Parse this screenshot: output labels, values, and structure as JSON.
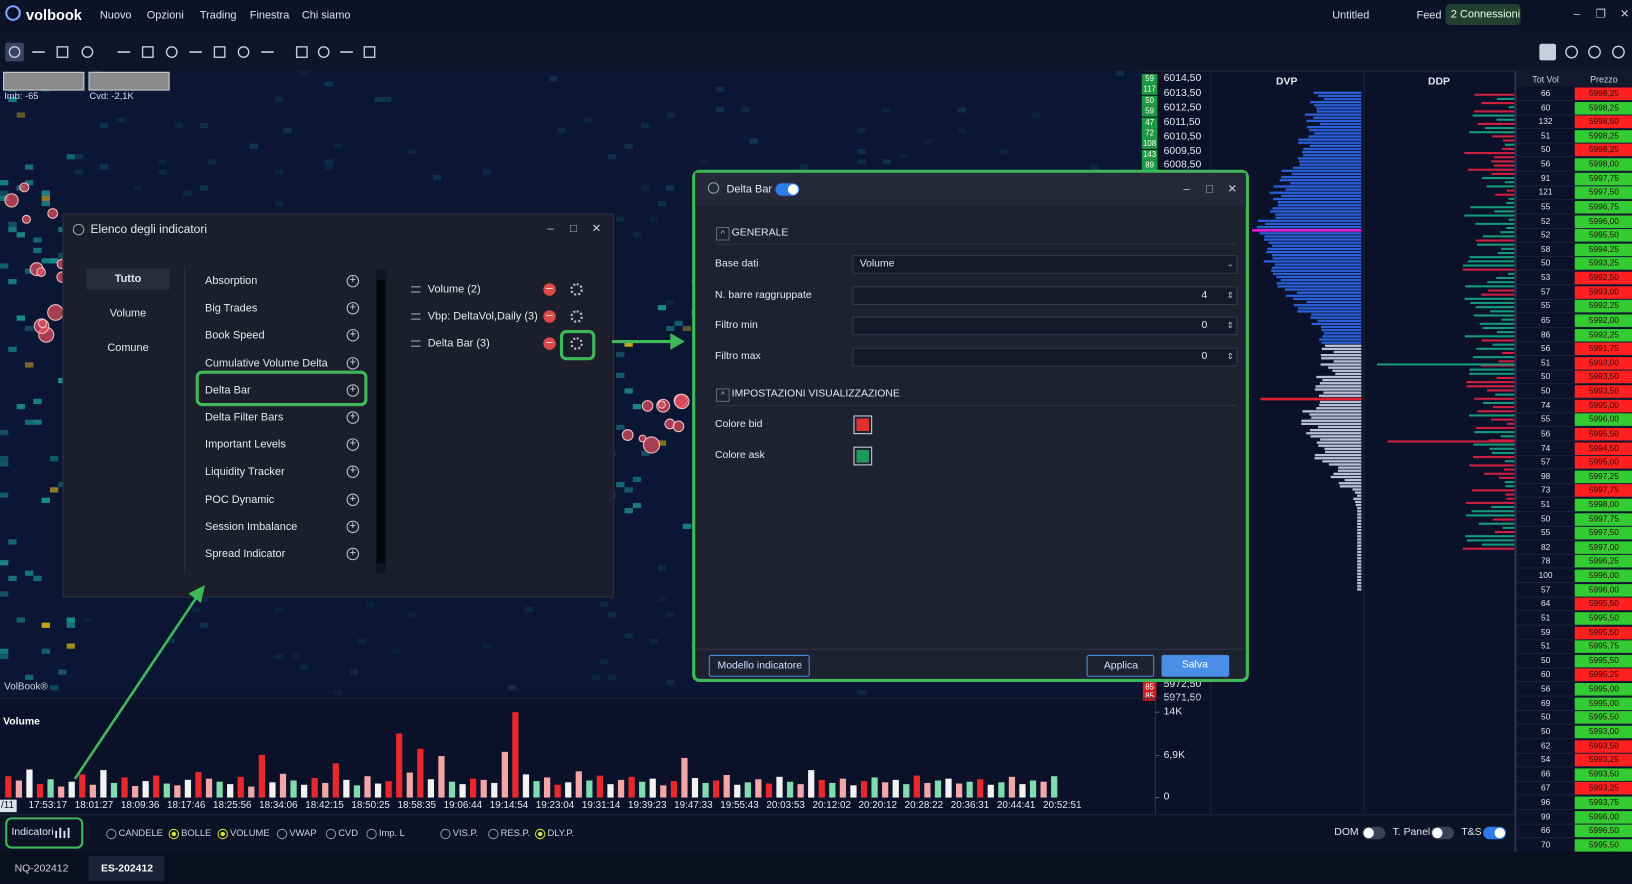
{
  "menu": {
    "logo": "volbook",
    "items": [
      "Nuovo",
      "Opzioni",
      "Trading",
      "Finestra",
      "Chi siamo"
    ],
    "workspace": "Untitled",
    "feed": "Feed",
    "connections": "2 Connessioni"
  },
  "chart": {
    "imb": "Imb: -65",
    "cvd": "Cvd: -2,1K",
    "watermark": "VolBook®",
    "price_labels": [
      "6014,50",
      "6013,50",
      "6012,50",
      "6011,50",
      "6010,50",
      "6009,50",
      "6008,50"
    ],
    "price_volumes": [
      59,
      117,
      50,
      59,
      47,
      72,
      108,
      143,
      89
    ],
    "bottom_prices": [
      "5972,50",
      "5971,50"
    ],
    "bottom_volumes": [
      85,
      85
    ]
  },
  "volume_chart": {
    "type": "bar",
    "title": "Volume",
    "values": [
      3500,
      2800,
      4600,
      2200,
      3000,
      1800,
      2600,
      3800,
      2100,
      4500,
      2400,
      3300,
      1900,
      2700,
      3600,
      2300,
      2000,
      2900,
      4200,
      3100,
      2600,
      2200,
      3400,
      1800,
      7000,
      2500,
      3900,
      2800,
      2100,
      3200,
      2400,
      5600,
      2900,
      2000,
      3500,
      2300,
      2700,
      10500,
      4100,
      8000,
      3000,
      6800,
      2600,
      2200,
      3100,
      2900,
      2400,
      7500,
      14000,
      3800,
      2700,
      3300,
      2100,
      2500,
      4300,
      2800,
      3600,
      2200,
      2900,
      3400,
      2600,
      3100,
      2000,
      2700,
      6500,
      3200,
      2400,
      2800,
      3700,
      2100,
      2500,
      3000,
      2300,
      3400,
      2600,
      2200,
      4500,
      2900,
      2400,
      3100,
      2000,
      2700,
      3300,
      2500,
      2900,
      2200,
      3600,
      2400,
      2800,
      3100,
      2300,
      2600,
      3000,
      2100,
      2500,
      3400,
      2200,
      2800,
      2600,
      3500
    ],
    "colors": [
      "#e8282b",
      "#f4a6a6",
      "#f2f2f2",
      "#e8282b",
      "#7fdcb0",
      "#f4a6a6",
      "#f2f2f2",
      "#e8282b",
      "#f4a6a6",
      "#f2f2f2",
      "#7fdcb0",
      "#e8282b",
      "#f4a6a6",
      "#f2f2f2",
      "#e8282b",
      "#7fdcb0",
      "#f4a6a6",
      "#f2f2f2",
      "#e8282b",
      "#f4a6a6",
      "#7fdcb0",
      "#f2f2f2",
      "#e8282b",
      "#f4a6a6",
      "#e8282b",
      "#f2f2f2",
      "#f4a6a6",
      "#7fdcb0",
      "#f2f2f2",
      "#e8282b",
      "#f4a6a6",
      "#e8282b",
      "#f2f2f2",
      "#7fdcb0",
      "#f4a6a6",
      "#f2f2f2",
      "#e8282b",
      "#e8282b",
      "#f4a6a6",
      "#e8282b",
      "#f2f2f2",
      "#f4a6a6",
      "#7fdcb0",
      "#f2f2f2",
      "#e8282b",
      "#f4a6a6",
      "#f2f2f2",
      "#f4a6a6",
      "#e8282b",
      "#f2f2f2",
      "#7fdcb0",
      "#f4a6a6",
      "#e8282b",
      "#f2f2f2",
      "#f4a6a6",
      "#7fdcb0",
      "#e8282b",
      "#f2f2f2",
      "#f4a6a6",
      "#e8282b",
      "#7fdcb0",
      "#f2f2f2",
      "#f4a6a6",
      "#e8282b",
      "#f4a6a6",
      "#f2f2f2",
      "#7fdcb0",
      "#e8282b",
      "#f4a6a6",
      "#f2f2f2",
      "#7fdcb0",
      "#f4a6a6",
      "#e8282b",
      "#f2f2f2",
      "#7fdcb0",
      "#f4a6a6",
      "#f2f2f2",
      "#e8282b",
      "#7fdcb0",
      "#f4a6a6",
      "#f2f2f2",
      "#e8282b",
      "#7fdcb0",
      "#f4a6a6",
      "#f2f2f2",
      "#7fdcb0",
      "#e8282b",
      "#f4a6a6",
      "#7fdcb0",
      "#f2f2f2",
      "#f4a6a6",
      "#7fdcb0",
      "#e8282b",
      "#f2f2f2",
      "#7fdcb0",
      "#f4a6a6",
      "#f2f2f2",
      "#7fdcb0",
      "#f4a6a6",
      "#7fdcb0"
    ],
    "ylim": [
      0,
      14000
    ],
    "yticks": [
      0,
      {
        "value": 6900,
        "label": "6,9K"
      },
      {
        "value": 14000,
        "label": "14K"
      }
    ],
    "date_label": "/11",
    "time_labels": [
      "17:53:17",
      "18:01:27",
      "18:09:36",
      "18:17:46",
      "18:25:56",
      "18:34:06",
      "18:42:15",
      "18:50:25",
      "18:58:35",
      "19:06:44",
      "19:14:54",
      "19:23:04",
      "19:31:14",
      "19:39:23",
      "19:47:33",
      "19:55:43",
      "20:03:53",
      "20:12:02",
      "20:20:12",
      "20:28:22",
      "20:36:31",
      "20:44:41",
      "20:52:51"
    ]
  },
  "dom": {
    "dvp": "DVP",
    "ddp": "DDP",
    "headers": [
      "Tot Vol",
      "Prezzo"
    ],
    "rows": [
      [
        "66",
        "5998,25",
        "#ff2020"
      ],
      [
        "60",
        "5998,25",
        "#33cc33"
      ],
      [
        "132",
        "5998,50",
        "#ff2020"
      ],
      [
        "51",
        "5998,25",
        "#33cc33"
      ],
      [
        "50",
        "5998,25",
        "#ff2020"
      ],
      [
        "56",
        "5998,00",
        "#33cc33"
      ],
      [
        "91",
        "5997,75",
        "#33cc33"
      ],
      [
        "121",
        "5997,50",
        "#33cc33"
      ],
      [
        "55",
        "5996,75",
        "#33cc33"
      ],
      [
        "52",
        "5996,00",
        "#33cc33"
      ],
      [
        "52",
        "5995,50",
        "#33cc33"
      ],
      [
        "58",
        "5994,25",
        "#33cc33"
      ],
      [
        "50",
        "5993,25",
        "#33cc33"
      ],
      [
        "53",
        "5992,50",
        "#ff2020"
      ],
      [
        "57",
        "5993,00",
        "#ff2020"
      ],
      [
        "55",
        "5992,25",
        "#33cc33"
      ],
      [
        "65",
        "5992,00",
        "#33cc33"
      ],
      [
        "86",
        "5992,25",
        "#33cc33"
      ],
      [
        "56",
        "5991,75",
        "#ff2020"
      ],
      [
        "51",
        "5993,00",
        "#ff2020"
      ],
      [
        "50",
        "5993,50",
        "#ff2020"
      ],
      [
        "50",
        "5993,50",
        "#ff2020"
      ],
      [
        "74",
        "5995,00",
        "#ff2020"
      ],
      [
        "55",
        "5996,00",
        "#33cc33"
      ],
      [
        "56",
        "5995,50",
        "#ff2020"
      ],
      [
        "74",
        "5994,50",
        "#ff2020"
      ],
      [
        "57",
        "5995,00",
        "#ff2020"
      ],
      [
        "98",
        "5997,25",
        "#33cc33"
      ],
      [
        "73",
        "5997,75",
        "#ff2020"
      ],
      [
        "51",
        "5998,00",
        "#33cc33"
      ],
      [
        "50",
        "5997,75",
        "#33cc33"
      ],
      [
        "55",
        "5997,50",
        "#33cc33"
      ],
      [
        "82",
        "5997,00",
        "#33cc33"
      ],
      [
        "78",
        "5996,25",
        "#33cc33"
      ],
      [
        "100",
        "5996,00",
        "#33cc33"
      ],
      [
        "57",
        "5996,00",
        "#33cc33"
      ],
      [
        "64",
        "5995,50",
        "#ff2020"
      ],
      [
        "51",
        "5995,50",
        "#33cc33"
      ],
      [
        "59",
        "5995,50",
        "#ff2020"
      ],
      [
        "51",
        "5995,75",
        "#33cc33"
      ],
      [
        "50",
        "5995,50",
        "#33cc33"
      ],
      [
        "60",
        "5995,25",
        "#ff2020"
      ],
      [
        "56",
        "5995,00",
        "#33cc33"
      ],
      [
        "69",
        "5995,00",
        "#33cc33"
      ],
      [
        "50",
        "5995,50",
        "#33cc33"
      ],
      [
        "50",
        "5993,00",
        "#33cc33"
      ],
      [
        "62",
        "5993,50",
        "#ff2020"
      ],
      [
        "54",
        "5993,25",
        "#ff2020"
      ],
      [
        "66",
        "5993,50",
        "#33cc33"
      ],
      [
        "67",
        "5993,25",
        "#ff2020"
      ],
      [
        "96",
        "5993,75",
        "#33cc33"
      ],
      [
        "99",
        "5996,00",
        "#33cc33"
      ],
      [
        "66",
        "5996,50",
        "#33cc33"
      ],
      [
        "70",
        "5995,50",
        "#33cc33"
      ]
    ]
  },
  "indicators_dialog": {
    "title": "Elenco degli indicatori",
    "categories": [
      "Tutto",
      "Volume",
      "Comune"
    ],
    "available": [
      "Absorption",
      "Big Trades",
      "Book Speed",
      "Cumulative Volume Delta",
      "Delta Bar",
      "Delta Filter Bars",
      "Important Levels",
      "Liquidity Tracker",
      "POC Dynamic",
      "Session Imbalance",
      "Spread Indicator"
    ],
    "active": [
      "Volume (2)",
      "Vbp: DeltaVol,Daily (3)",
      "Delta Bar (3)"
    ]
  },
  "delta_bar_dialog": {
    "title": "Delta Bar",
    "section_general": "GENERALE",
    "fields": [
      {
        "label": "Base dati",
        "value": "Volume"
      },
      {
        "label": "N. barre raggruppate",
        "value": "4"
      },
      {
        "label": "Filtro min",
        "value": "0"
      },
      {
        "label": "Filtro max",
        "value": "0"
      }
    ],
    "section_display": "IMPOSTAZIONI VISUALIZZAZIONE",
    "colors": [
      {
        "label": "Colore bid",
        "color": "#e03030"
      },
      {
        "label": "Colore ask",
        "color": "#1f9a5a"
      }
    ],
    "template_button": "Modello indicatore",
    "apply_button": "Applica",
    "save_button": "Salva"
  },
  "bottom_bar": {
    "indicators": "Indicatori",
    "options": [
      {
        "label": "CANDELE",
        "checked": false
      },
      {
        "label": "BOLLE",
        "checked": true
      },
      {
        "label": "VOLUME",
        "checked": true
      },
      {
        "label": "VWAP",
        "checked": false
      },
      {
        "label": "CVD",
        "checked": false
      },
      {
        "label": "Imp. L",
        "checked": false
      },
      {
        "label": "VIS.P.",
        "checked": false
      },
      {
        "label": "RES.P.",
        "checked": false
      },
      {
        "label": "DLY.P.",
        "checked": true
      }
    ],
    "toggles": [
      {
        "label": "DOM",
        "on": false
      },
      {
        "label": "T. Panel",
        "on": false
      },
      {
        "label": "T&S",
        "on": true
      }
    ]
  },
  "tabs": [
    "NQ-202412",
    "ES-202412"
  ]
}
